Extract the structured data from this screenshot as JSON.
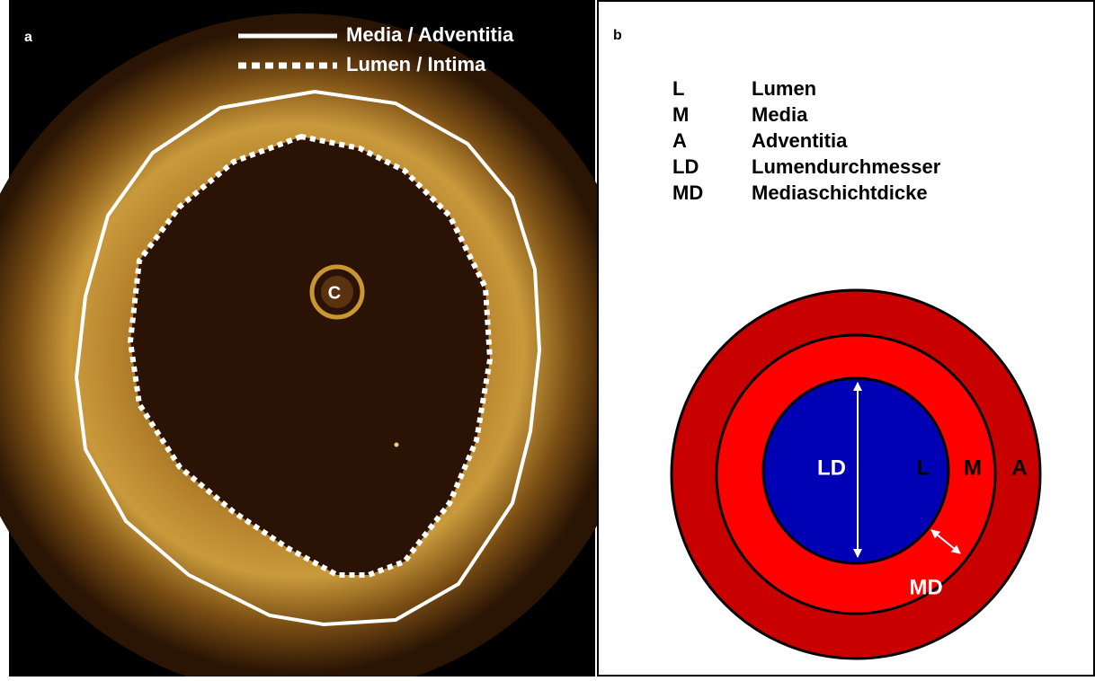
{
  "panel_a": {
    "label": "a",
    "legend": [
      "Media / Adventitia",
      "Lumen / Intima"
    ],
    "center_label": "C"
  },
  "panel_b": {
    "label": "b",
    "legend": [
      {
        "abbr": "L",
        "term": "Lumen"
      },
      {
        "abbr": "M",
        "term": "Media"
      },
      {
        "abbr": "A",
        "term": "Adventitia"
      },
      {
        "abbr": "LD",
        "term": "Lumendurchmesser"
      },
      {
        "abbr": "MD",
        "term": "Mediaschichtdicke"
      }
    ],
    "diagram_labels": {
      "ld": "LD",
      "lumen": "L",
      "media": "M",
      "adventitia": "A",
      "md": "MD"
    }
  }
}
